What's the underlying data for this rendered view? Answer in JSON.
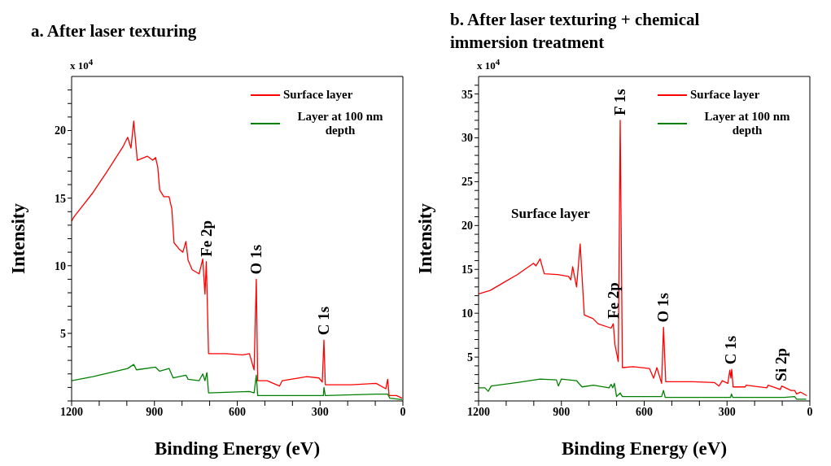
{
  "chart_data": [
    {
      "type": "line",
      "title": "a. After laser texturing",
      "xlabel": "Binding Energy (eV)",
      "ylabel": "Intensity",
      "xlim": [
        1200,
        0
      ],
      "xticks": [
        1200,
        {
          "value": 1100,
          "label": null
        },
        {
          "value": 1000,
          "label": null
        },
        900,
        {
          "value": 800,
          "label": null
        },
        {
          "value": 700,
          "label": null
        },
        600,
        {
          "value": 500,
          "label": null
        },
        {
          "value": 400,
          "label": null
        },
        300,
        {
          "value": 200,
          "label": null
        },
        {
          "value": 100,
          "label": null
        },
        0
      ],
      "ylim": [
        0,
        24
      ],
      "yticks": [
        {
          "value": 0,
          "label": null
        },
        {
          "value": 1,
          "label": null
        },
        {
          "value": 2,
          "label": null
        },
        {
          "value": 3,
          "label": null
        },
        {
          "value": 4,
          "label": null
        },
        5,
        {
          "value": 6,
          "label": null
        },
        {
          "value": 7,
          "label": null
        },
        {
          "value": 8,
          "label": null
        },
        {
          "value": 9,
          "label": null
        },
        10,
        {
          "value": 11,
          "label": null
        },
        {
          "value": 12,
          "label": null
        },
        {
          "value": 13,
          "label": null
        },
        {
          "value": 14,
          "label": null
        },
        15,
        {
          "value": 16,
          "label": null
        },
        {
          "value": 17,
          "label": null
        },
        {
          "value": 18,
          "label": null
        },
        {
          "value": 19,
          "label": null
        },
        20,
        {
          "value": 21,
          "label": null
        },
        {
          "value": 22,
          "label": null
        },
        {
          "value": 23,
          "label": null
        }
      ],
      "legend": "top right",
      "annotations": [
        "x 10$^{4}$",
        {
          "text": "Fe 2p",
          "x": 712,
          "y": 10.3
        },
        {
          "text": "O 1s",
          "x": 531,
          "y": 9.0
        },
        {
          "text": "C 1s",
          "x": 286,
          "y": 4.5
        }
      ],
      "series": [
        {
          "name": "Surface layer",
          "color": "#ff0000",
          "x": [
            1200,
            1192,
            1123,
            1074,
            1014,
            997,
            985,
            975,
            962,
            926,
            906,
            896,
            888,
            881,
            866,
            847,
            837,
            829,
            809,
            797,
            786,
            778,
            763,
            738,
            725,
            717,
            712,
            704,
            640,
            580,
            556,
            539,
            531,
            526,
            492,
            447,
            437,
            348,
            304,
            292,
            286,
            281,
            186,
            97,
            62,
            55,
            50,
            23,
            3
          ],
          "values": [
            13.3,
            13.6,
            15.4,
            16.9,
            18.8,
            19.5,
            18.7,
            20.7,
            17.8,
            18.1,
            17.8,
            18.0,
            17.3,
            15.6,
            15.1,
            15.1,
            14.2,
            11.7,
            11.2,
            11.0,
            11.8,
            10.4,
            9.7,
            9.4,
            10.5,
            7.9,
            10.3,
            3.5,
            3.5,
            3.4,
            3.5,
            2.3,
            9.0,
            1.5,
            1.5,
            1.1,
            1.5,
            1.8,
            1.7,
            1.4,
            4.5,
            1.2,
            1.2,
            1.3,
            0.9,
            1.6,
            0.4,
            0.4,
            0.2
          ]
        },
        {
          "name": "Layer at 100 nm depth",
          "color": "#008000",
          "x": [
            1200,
            1123,
            997,
            975,
            965,
            896,
            881,
            847,
            832,
            786,
            778,
            738,
            725,
            717,
            710,
            704,
            556,
            539,
            531,
            526,
            288,
            286,
            281,
            97,
            55,
            47,
            3
          ],
          "values": [
            1.5,
            1.8,
            2.4,
            2.7,
            2.3,
            2.5,
            2.2,
            2.4,
            1.7,
            1.9,
            1.6,
            1.5,
            2.0,
            1.5,
            2.1,
            0.6,
            0.7,
            0.6,
            1.9,
            0.4,
            0.4,
            1.0,
            0.4,
            0.5,
            0.5,
            0.2,
            0.1
          ]
        }
      ]
    },
    {
      "type": "line",
      "title": "b. After laser texturing + chemical immersion treatment",
      "xlabel": "Binding Energy (eV)",
      "ylabel": "Intensity",
      "xlim": [
        1200,
        0
      ],
      "xticks": [
        1200,
        {
          "value": 1100,
          "label": null
        },
        {
          "value": 1000,
          "label": null
        },
        900,
        {
          "value": 800,
          "label": null
        },
        {
          "value": 700,
          "label": null
        },
        600,
        {
          "value": 500,
          "label": null
        },
        {
          "value": 400,
          "label": null
        },
        300,
        {
          "value": 200,
          "label": null
        },
        {
          "value": 100,
          "label": null
        },
        0
      ],
      "ylim": [
        0,
        37
      ],
      "yticks": [
        {
          "value": 0,
          "label": null
        },
        {
          "value": 1,
          "label": null
        },
        {
          "value": 2,
          "label": null
        },
        {
          "value": 3,
          "label": null
        },
        {
          "value": 4,
          "label": null
        },
        5,
        {
          "value": 6,
          "label": null
        },
        {
          "value": 7,
          "label": null
        },
        {
          "value": 8,
          "label": null
        },
        {
          "value": 9,
          "label": null
        },
        10,
        {
          "value": 11,
          "label": null
        },
        {
          "value": 12,
          "label": null
        },
        {
          "value": 13,
          "label": null
        },
        {
          "value": 14,
          "label": null
        },
        15,
        {
          "value": 16,
          "label": null
        },
        {
          "value": 17,
          "label": null
        },
        {
          "value": 18,
          "label": null
        },
        {
          "value": 19,
          "label": null
        },
        20,
        {
          "value": 21,
          "label": null
        },
        {
          "value": 22,
          "label": null
        },
        {
          "value": 23,
          "label": null
        },
        {
          "value": 24,
          "label": null
        },
        25,
        {
          "value": 26,
          "label": null
        },
        {
          "value": 27,
          "label": null
        },
        {
          "value": 28,
          "label": null
        },
        {
          "value": 29,
          "label": null
        },
        30,
        {
          "value": 31,
          "label": null
        },
        {
          "value": 32,
          "label": null
        },
        {
          "value": 33,
          "label": null
        },
        {
          "value": 34,
          "label": null
        },
        35,
        {
          "value": 36,
          "label": null
        }
      ],
      "legend": "top right",
      "annotations": [
        "x 10$^{4}$",
        "Surface layer",
        {
          "text": "F 1s",
          "x": 687,
          "y": 32.0
        },
        {
          "text": "Fe 2p",
          "x": 712,
          "y": 8.8
        },
        {
          "text": "O 1s",
          "x": 530,
          "y": 8.4
        },
        {
          "text": "C 1s",
          "x": 285,
          "y": 3.6
        },
        {
          "text": "Si 2p",
          "x": 102,
          "y": 1.7
        }
      ],
      "series": [
        {
          "name": "Surface layer",
          "color": "#ff0000",
          "x": [
            1200,
            1158,
            1109,
            1060,
            1001,
            992,
            977,
            962,
            913,
            874,
            866,
            859,
            845,
            832,
            817,
            786,
            767,
            720,
            712,
            706,
            694,
            687,
            679,
            640,
            581,
            566,
            554,
            537,
            530,
            522,
            424,
            346,
            329,
            317,
            297,
            290,
            286,
            283,
            278,
            234,
            231,
            156,
            151,
            107,
            102,
            68,
            55,
            48,
            33,
            11
          ],
          "values": [
            12.2,
            12.6,
            13.5,
            14.4,
            15.7,
            15.4,
            16.2,
            14.5,
            14.4,
            14.2,
            13.8,
            15.3,
            13.0,
            17.9,
            9.8,
            9.4,
            8.8,
            8.3,
            8.8,
            6.4,
            4.5,
            32.0,
            3.8,
            3.9,
            3.7,
            2.6,
            3.8,
            2.0,
            8.4,
            2.2,
            2.2,
            2.1,
            1.7,
            2.3,
            2.0,
            3.5,
            2.6,
            3.6,
            1.6,
            1.6,
            1.8,
            1.5,
            1.8,
            1.3,
            1.7,
            1.2,
            1.2,
            0.8,
            1.0,
            0.6
          ]
        },
        {
          "name": "Layer at 100 nm depth",
          "color": "#008000",
          "x": [
            1200,
            1177,
            1165,
            1154,
            1060,
            977,
            918,
            911,
            900,
            845,
            825,
            784,
            727,
            720,
            714,
            708,
            700,
            687,
            679,
            537,
            530,
            524,
            287,
            284,
            279,
            92,
            55,
            48,
            13
          ],
          "values": [
            1.5,
            1.5,
            1.1,
            1.7,
            2.1,
            2.5,
            2.4,
            1.7,
            2.5,
            2.3,
            1.6,
            1.8,
            1.5,
            1.9,
            1.5,
            2.0,
            0.5,
            0.9,
            0.5,
            0.5,
            1.2,
            0.4,
            0.4,
            0.8,
            0.4,
            0.4,
            0.5,
            0.2,
            0.2
          ]
        }
      ]
    }
  ]
}
